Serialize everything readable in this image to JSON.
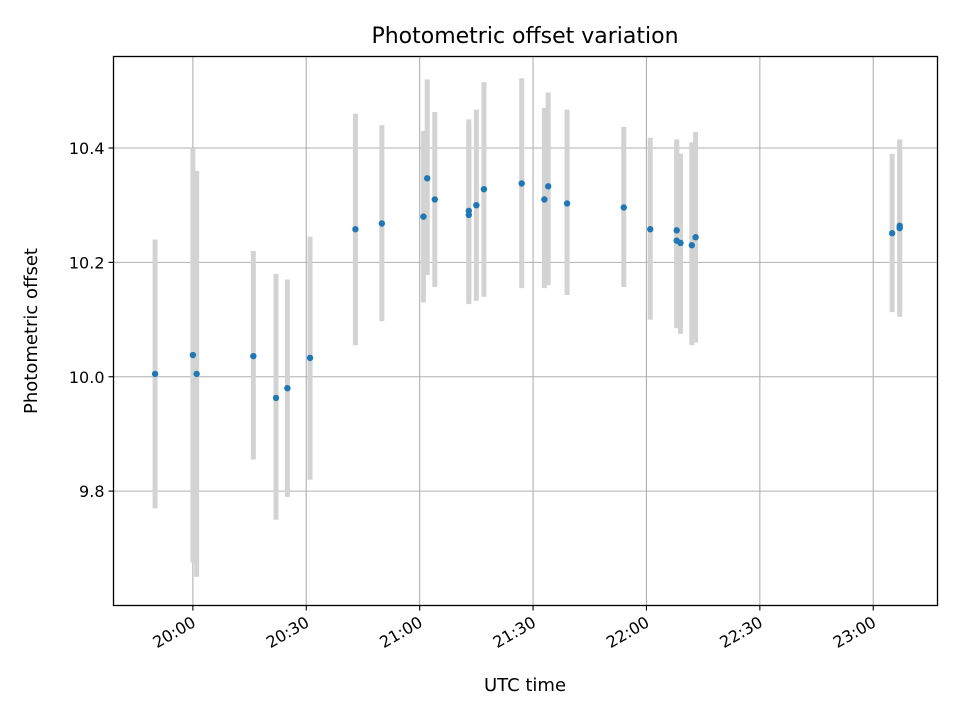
{
  "chart_data": {
    "type": "scatter",
    "title": "Photometric offset variation",
    "xlabel": "UTC time",
    "ylabel": "Photometric offset",
    "x_ticks": [
      "20:00",
      "20:30",
      "21:00",
      "21:30",
      "22:00",
      "22:30",
      "23:00"
    ],
    "y_ticks": [
      "9.8",
      "10.0",
      "10.2",
      "10.4"
    ],
    "xlim": [
      "19:39",
      "23:17"
    ],
    "ylim": [
      9.6,
      10.56
    ],
    "grid": true,
    "marker_color": "#1f77b4",
    "errorbar_color": "#d3d3d3",
    "series": [
      {
        "points": [
          {
            "t": "19:50",
            "y": 10.005,
            "lo": 9.77,
            "hi": 10.24
          },
          {
            "t": "20:00",
            "y": 10.038,
            "lo": 9.675,
            "hi": 10.4
          },
          {
            "t": "20:01",
            "y": 10.005,
            "lo": 9.65,
            "hi": 10.36
          },
          {
            "t": "20:16",
            "y": 10.036,
            "lo": 9.855,
            "hi": 10.22
          },
          {
            "t": "20:22",
            "y": 9.963,
            "lo": 9.75,
            "hi": 10.18
          },
          {
            "t": "20:25",
            "y": 9.98,
            "lo": 9.79,
            "hi": 10.17
          },
          {
            "t": "20:31",
            "y": 10.033,
            "lo": 9.82,
            "hi": 10.245
          },
          {
            "t": "20:43",
            "y": 10.258,
            "lo": 10.055,
            "hi": 10.46
          },
          {
            "t": "20:50",
            "y": 10.268,
            "lo": 10.097,
            "hi": 10.44
          },
          {
            "t": "21:01",
            "y": 10.28,
            "lo": 10.13,
            "hi": 10.43
          },
          {
            "t": "21:02",
            "y": 10.347,
            "lo": 10.178,
            "hi": 10.52
          },
          {
            "t": "21:04",
            "y": 10.31,
            "lo": 10.157,
            "hi": 10.463
          },
          {
            "t": "21:13",
            "y": 10.29,
            "lo": 10.127,
            "hi": 10.45
          },
          {
            "t": "21:13",
            "y": 10.283,
            "lo": 10.13,
            "hi": 10.44
          },
          {
            "t": "21:15",
            "y": 10.3,
            "lo": 10.133,
            "hi": 10.467
          },
          {
            "t": "21:17",
            "y": 10.328,
            "lo": 10.14,
            "hi": 10.515
          },
          {
            "t": "21:27",
            "y": 10.338,
            "lo": 10.155,
            "hi": 10.522
          },
          {
            "t": "21:33",
            "y": 10.31,
            "lo": 10.155,
            "hi": 10.47
          },
          {
            "t": "21:34",
            "y": 10.333,
            "lo": 10.16,
            "hi": 10.497
          },
          {
            "t": "21:39",
            "y": 10.303,
            "lo": 10.143,
            "hi": 10.467
          },
          {
            "t": "21:54",
            "y": 10.296,
            "lo": 10.157,
            "hi": 10.437
          },
          {
            "t": "22:01",
            "y": 10.258,
            "lo": 10.1,
            "hi": 10.418
          },
          {
            "t": "22:08",
            "y": 10.256,
            "lo": 10.098,
            "hi": 10.415
          },
          {
            "t": "22:08",
            "y": 10.238,
            "lo": 10.085,
            "hi": 10.41
          },
          {
            "t": "22:09",
            "y": 10.234,
            "lo": 10.075,
            "hi": 10.39
          },
          {
            "t": "22:12",
            "y": 10.23,
            "lo": 10.055,
            "hi": 10.41
          },
          {
            "t": "22:13",
            "y": 10.244,
            "lo": 10.06,
            "hi": 10.428
          },
          {
            "t": "23:05",
            "y": 10.251,
            "lo": 10.113,
            "hi": 10.39
          },
          {
            "t": "23:07",
            "y": 10.26,
            "lo": 10.105,
            "hi": 10.415
          },
          {
            "t": "23:07",
            "y": 10.264,
            "lo": 10.115,
            "hi": 10.412
          }
        ]
      }
    ]
  }
}
